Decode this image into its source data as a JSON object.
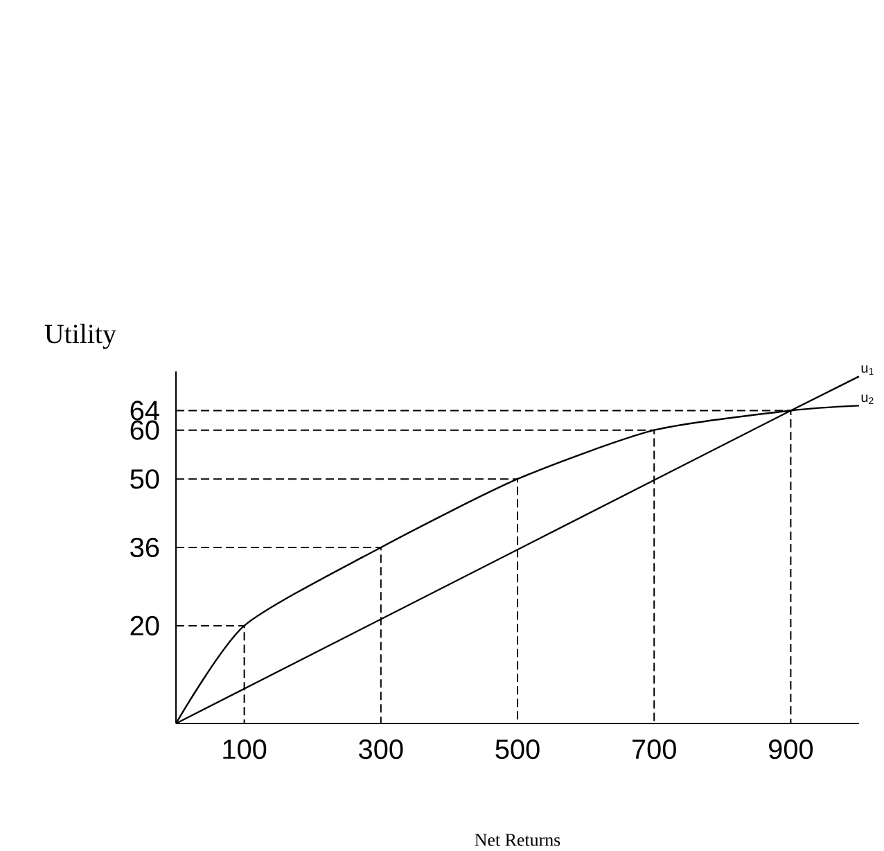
{
  "chart_data": {
    "type": "line",
    "xlabel": "Net Returns",
    "ylabel": "Utility",
    "xlim": [
      0,
      1000
    ],
    "ylim": [
      0,
      72
    ],
    "xticks": [
      100,
      300,
      500,
      700,
      900
    ],
    "yticks": [
      20,
      36,
      50,
      60,
      64
    ],
    "series": [
      {
        "name": "u$_{1}$",
        "color": "#000000",
        "x": [
          0,
          900,
          1000
        ],
        "values": [
          0,
          64,
          71
        ]
      },
      {
        "name": "u$_{2}$",
        "color": "#000000",
        "x": [
          0,
          100,
          300,
          500,
          700,
          900,
          1000
        ],
        "values": [
          0,
          20,
          36,
          50,
          60,
          64,
          65
        ]
      },
      {
        "color": "#000000",
        "line_style": "dashed",
        "x": [
          0,
          100,
          100
        ],
        "values": [
          20,
          20,
          0
        ]
      },
      {
        "color": "#000000",
        "line_style": "dashed",
        "x": [
          0,
          300,
          300
        ],
        "values": [
          36,
          36,
          0
        ]
      },
      {
        "color": "#000000",
        "line_style": "dashed",
        "x": [
          0,
          500,
          500
        ],
        "values": [
          50,
          50,
          0
        ]
      },
      {
        "color": "#000000",
        "line_style": "dashed",
        "x": [
          0,
          700,
          700
        ],
        "values": [
          60,
          60,
          0
        ]
      },
      {
        "color": "#000000",
        "line_style": "dashed",
        "x": [
          0,
          900,
          900
        ],
        "values": [
          64,
          64,
          0
        ]
      }
    ],
    "grid": false,
    "marker": "none",
    "line_style": "solid"
  }
}
